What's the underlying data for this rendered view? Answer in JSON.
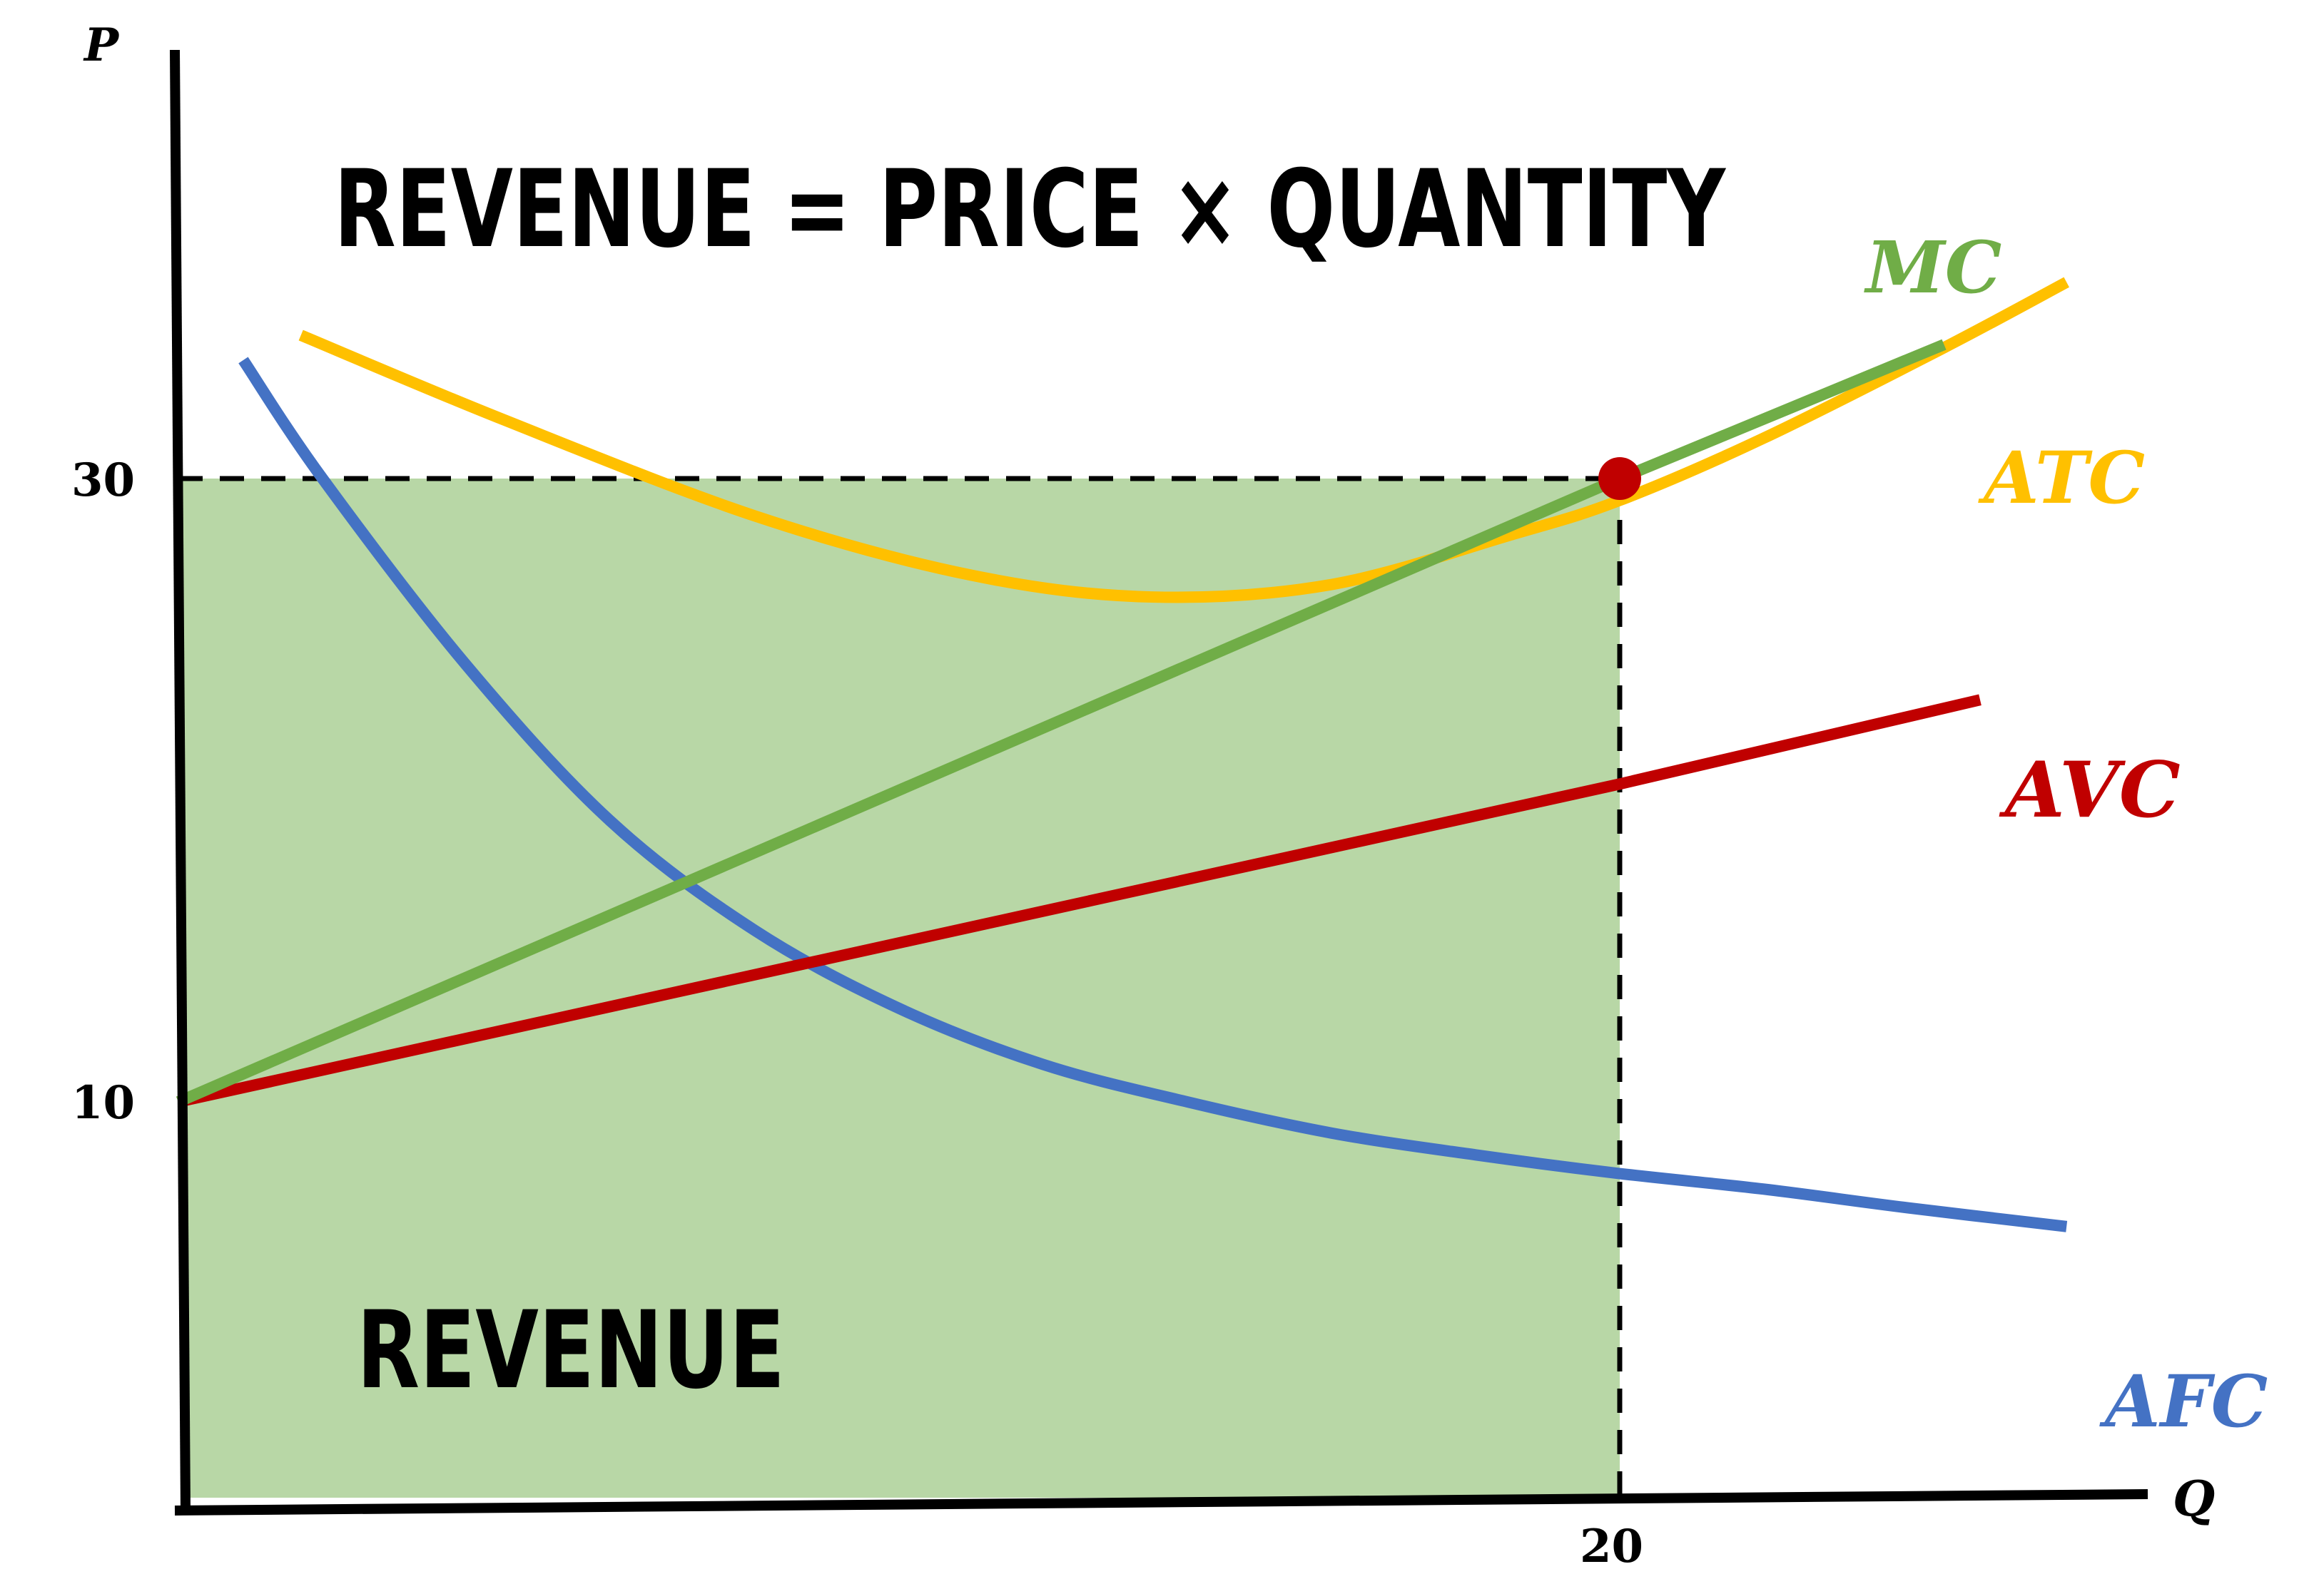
{
  "chart_data": {
    "type": "line",
    "title": "REVENUE = PRICE × QUANTITY",
    "xlabel": "Q",
    "ylabel": "P",
    "x_ticks": [
      "20"
    ],
    "y_ticks": [
      "10",
      "30"
    ],
    "xlim": [
      0,
      27.5
    ],
    "ylim": [
      -2.5,
      36
    ],
    "grid": false,
    "area_label": "REVENUE",
    "revenue_area": {
      "price": 30,
      "quantity": 20,
      "color": "#b8d7a6"
    },
    "highlight_point": {
      "x": 20,
      "y": 30,
      "color": "#c00000"
    },
    "series": [
      {
        "name": "MC",
        "color": "#70ad47",
        "x": [
          0,
          20,
          24.5
        ],
        "y": [
          10,
          30,
          34.3
        ]
      },
      {
        "name": "ATC",
        "color": "#ffc000",
        "x": [
          1.7,
          4.5,
          8,
          11,
          13.5,
          16,
          18.5,
          20,
          22,
          24.5,
          26.2
        ],
        "y": [
          34.6,
          31.9,
          28.8,
          26.9,
          26.2,
          26.6,
          28.2,
          29.3,
          31.3,
          34.2,
          36.3
        ]
      },
      {
        "name": "AVC",
        "color": "#c00000",
        "x": [
          0,
          20,
          25
        ],
        "y": [
          10,
          20.2,
          22.9
        ]
      },
      {
        "name": "AFC",
        "color": "#4472c4",
        "x": [
          0.9,
          2,
          4,
          6,
          8,
          10,
          12,
          14,
          16,
          18,
          20,
          22,
          24,
          26.2
        ],
        "y": [
          33.8,
          30,
          24,
          19,
          15.5,
          13,
          11.2,
          10,
          9,
          8.3,
          7.7,
          7.2,
          6.6,
          6
        ]
      }
    ]
  }
}
